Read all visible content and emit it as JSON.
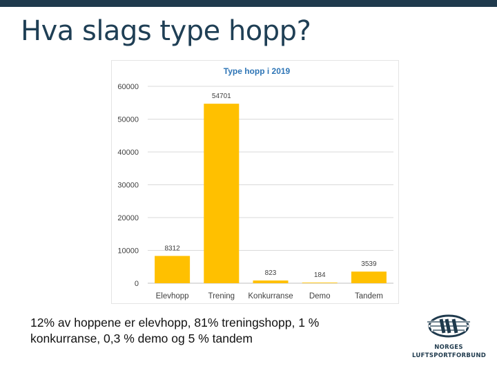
{
  "slide": {
    "title": "Hva slags type hopp?",
    "caption": "12% av hoppene er elevhopp, 81% treningshopp, 1 % konkurranse, 0,3 % demo og 5 % tandem"
  },
  "logo": {
    "icon": "nlf-logo-icon",
    "line1": "NORGES",
    "line2": "LUFTSPORTFORBUND",
    "color": "#1f3a4d"
  },
  "colors": {
    "bar": "#ffc000",
    "title": "#1f3f55",
    "chart_title": "#2e75b6",
    "grid": "#d9d9d9"
  },
  "chart_data": {
    "type": "bar",
    "title": "Type hopp i 2019",
    "categories": [
      "Elevhopp",
      "Trening",
      "Konkurranse",
      "Demo",
      "Tandem"
    ],
    "values": [
      8312,
      54701,
      823,
      184,
      3539
    ],
    "data_labels": [
      "8312",
      "54701",
      "823",
      "184",
      "3539"
    ],
    "ylim": [
      0,
      60000
    ],
    "yticks": [
      "0",
      "10000",
      "20000",
      "30000",
      "40000",
      "50000",
      "60000"
    ],
    "grid": true,
    "legend": "none"
  }
}
